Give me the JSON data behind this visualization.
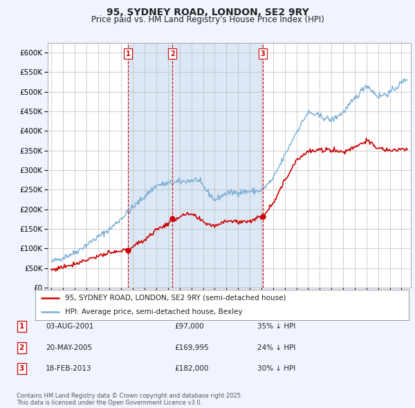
{
  "title": "95, SYDNEY ROAD, LONDON, SE2 9RY",
  "subtitle": "Price paid vs. HM Land Registry's House Price Index (HPI)",
  "legend_line1": "95, SYDNEY ROAD, LONDON, SE2 9RY (semi-detached house)",
  "legend_line2": "HPI: Average price, semi-detached house, Bexley",
  "transactions": [
    {
      "label": "1",
      "date": "03-AUG-2001",
      "price": 97000,
      "hpi_pct": "35% ↓ HPI",
      "x_year": 2001.58
    },
    {
      "label": "2",
      "date": "20-MAY-2005",
      "price": 169995,
      "hpi_pct": "24% ↓ HPI",
      "x_year": 2005.38
    },
    {
      "label": "3",
      "date": "18-FEB-2013",
      "price": 182000,
      "hpi_pct": "30% ↓ HPI",
      "x_year": 2013.12
    }
  ],
  "footer": "Contains HM Land Registry data © Crown copyright and database right 2025.\nThis data is licensed under the Open Government Licence v3.0.",
  "price_color": "#cc0000",
  "hpi_color": "#7aaed6",
  "vline_color": "#cc0000",
  "shade_color": "#dce8f5",
  "background_color": "#f0f4ff",
  "plot_bg": "#dce8f5",
  "ylim": [
    0,
    625000
  ],
  "yticks": [
    0,
    50000,
    100000,
    150000,
    200000,
    250000,
    300000,
    350000,
    400000,
    450000,
    500000,
    550000,
    600000
  ],
  "xlim_start": 1994.7,
  "xlim_end": 2025.8
}
